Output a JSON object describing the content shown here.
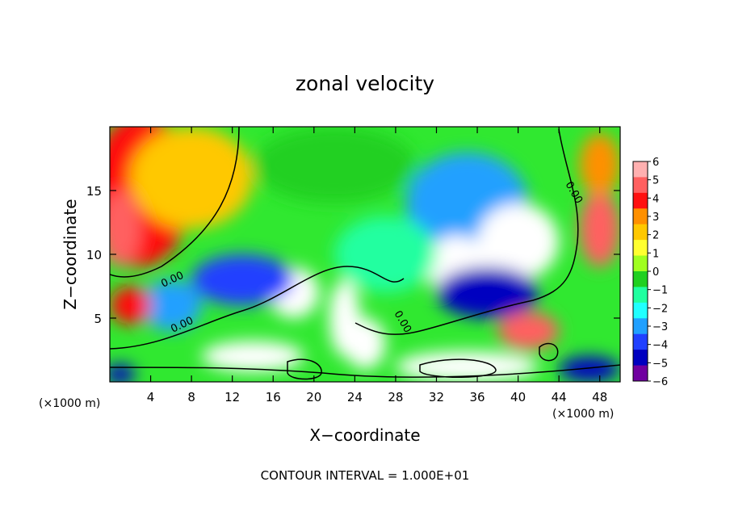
{
  "chart_data": {
    "type": "heatmap",
    "title": "zonal velocity",
    "xlabel": "X−coordinate",
    "ylabel": "Z−coordinate",
    "x_unit_label": "(×1000 m)",
    "x_unit_label_right": "(×1000 m)",
    "x_range": [
      0,
      50
    ],
    "y_range": [
      0,
      20
    ],
    "x_ticks": [
      4,
      8,
      12,
      16,
      20,
      24,
      28,
      32,
      36,
      40,
      44,
      48
    ],
    "x_tick_labels": [
      "4",
      "8",
      "12",
      "16",
      "20",
      "24",
      "28",
      "32",
      "36",
      "40",
      "44",
      "48"
    ],
    "y_ticks": [
      5,
      10,
      15
    ],
    "y_tick_labels": [
      "5",
      "10",
      "15"
    ],
    "colorbar": {
      "min": -6,
      "max": 6,
      "tick_labels": [
        "6",
        "5",
        "4",
        "3",
        "2",
        "1",
        "0",
        "−1",
        "−2",
        "−3",
        "−4",
        "−5",
        "−6"
      ],
      "colors": [
        "#ffb0b0",
        "#ff6060",
        "#ff1010",
        "#ff9000",
        "#ffc800",
        "#ffff30",
        "#a0ff20",
        "#20d020",
        "#20ffa0",
        "#20ffff",
        "#20a0ff",
        "#2040ff",
        "#0000c0",
        "#7000a0"
      ]
    },
    "contour_labels": [
      "0.00",
      "0.00",
      "0.00",
      "0.00"
    ],
    "features": [
      {
        "kind": "blob",
        "cx": 3,
        "cy": 15,
        "rx": 5,
        "ry": 6,
        "value": 3.5
      },
      {
        "kind": "blob",
        "cx": 1,
        "cy": 12,
        "rx": 2,
        "ry": 3,
        "value": 4.5
      },
      {
        "kind": "blob",
        "cx": 8,
        "cy": 16,
        "rx": 6,
        "ry": 4,
        "value": 2
      },
      {
        "kind": "blob",
        "cx": 22,
        "cy": 17,
        "rx": 8,
        "ry": 3,
        "value": 0
      },
      {
        "kind": "blob",
        "cx": 35,
        "cy": 14,
        "rx": 6,
        "ry": 4,
        "value": -3
      },
      {
        "kind": "blob",
        "cx": 40,
        "cy": 11,
        "rx": 4,
        "ry": 3,
        "value": -7
      },
      {
        "kind": "blob",
        "cx": 34,
        "cy": 9,
        "rx": 3,
        "ry": 2.5,
        "value": -7
      },
      {
        "kind": "blob",
        "cx": 37,
        "cy": 7,
        "rx": 5,
        "ry": 2,
        "value": -5
      },
      {
        "kind": "blob",
        "cx": 18,
        "cy": 7,
        "rx": 2.5,
        "ry": 2,
        "value": -7
      },
      {
        "kind": "blob",
        "cx": 13,
        "cy": 8,
        "rx": 5,
        "ry": 2,
        "value": -4
      },
      {
        "kind": "blob",
        "cx": 6,
        "cy": 6,
        "rx": 3,
        "ry": 2,
        "value": -3
      },
      {
        "kind": "blob",
        "cx": 23,
        "cy": 5,
        "rx": 1.5,
        "ry": 3,
        "value": 7
      },
      {
        "kind": "blob",
        "cx": 25,
        "cy": 3,
        "rx": 2,
        "ry": 2,
        "value": 7
      },
      {
        "kind": "blob",
        "cx": 14,
        "cy": 2,
        "rx": 5,
        "ry": 1.2,
        "value": 7
      },
      {
        "kind": "blob",
        "cx": 35,
        "cy": 1.2,
        "rx": 7,
        "ry": 1.2,
        "value": 7
      },
      {
        "kind": "blob",
        "cx": 41,
        "cy": 4,
        "rx": 3,
        "ry": 1.5,
        "value": 5
      },
      {
        "kind": "blob",
        "cx": 2,
        "cy": 6,
        "rx": 2,
        "ry": 1.5,
        "value": 4
      },
      {
        "kind": "blob",
        "cx": 48,
        "cy": 12,
        "rx": 2,
        "ry": 3,
        "value": 4.5
      },
      {
        "kind": "blob",
        "cx": 48,
        "cy": 17,
        "rx": 2,
        "ry": 2.5,
        "value": 3
      },
      {
        "kind": "blob",
        "cx": 47,
        "cy": 1,
        "rx": 3,
        "ry": 1,
        "value": -5
      },
      {
        "kind": "blob",
        "cx": 1,
        "cy": 0.6,
        "rx": 1.5,
        "ry": 0.8,
        "value": -5
      },
      {
        "kind": "blob",
        "cx": 27,
        "cy": 10,
        "rx": 5,
        "ry": 3,
        "value": -1
      }
    ],
    "annotation": "CONTOUR INTERVAL = 1.000E+01"
  }
}
